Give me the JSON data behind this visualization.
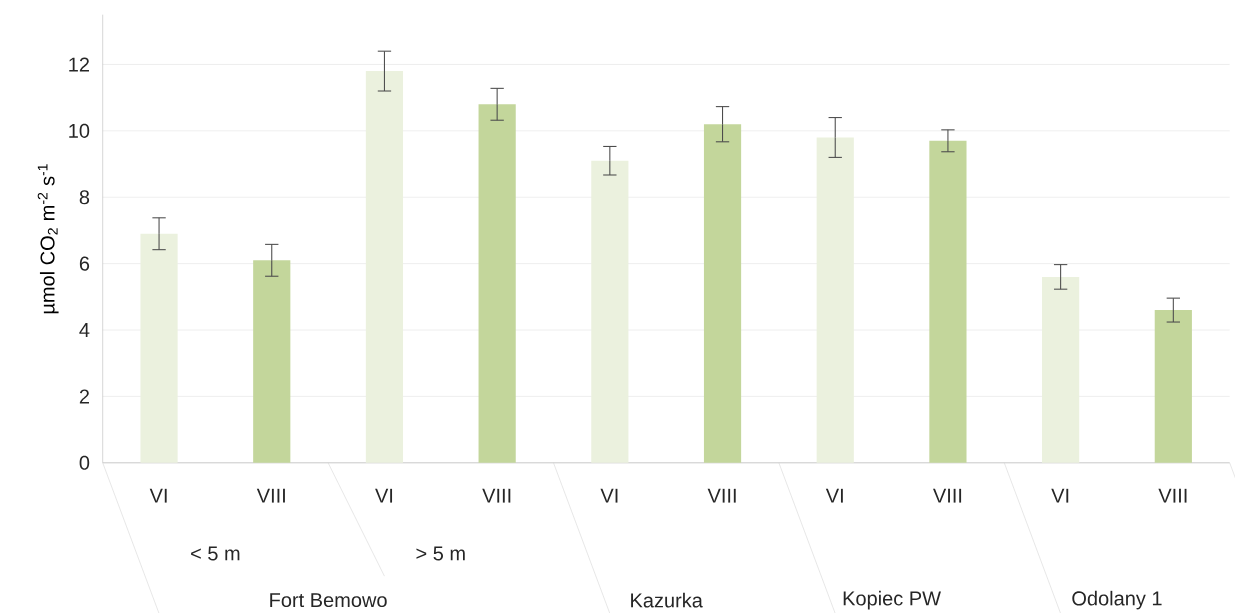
{
  "chart_data": {
    "type": "bar",
    "ylabel": "µmol CO$_{2}$ m$^{-2}$ s$^{-1}$",
    "categories": [
      "VI",
      "VIII",
      "VI",
      "VIII",
      "VI",
      "VIII",
      "VI",
      "VIII",
      "VI",
      "VIII"
    ],
    "values": [
      6.9,
      6.1,
      11.8,
      10.8,
      9.1,
      10.2,
      9.8,
      9.7,
      5.6,
      4.6
    ],
    "errors": [
      0.48,
      0.48,
      0.6,
      0.48,
      0.43,
      0.53,
      0.6,
      0.33,
      0.37,
      0.36
    ],
    "colors": [
      "#ebf1de",
      "#c3d69b",
      "#ebf1de",
      "#c3d69b",
      "#ebf1de",
      "#c3d69b",
      "#ebf1de",
      "#c3d69b",
      "#ebf1de",
      "#c3d69b"
    ],
    "annotations": [
      "< 5 m",
      "> 5 m",
      "Fort Bemowo",
      "Kazurka",
      "Kopiec PW",
      "Odolany 1"
    ],
    "ylim": [
      0,
      13.5
    ],
    "yticks": [
      0,
      2,
      4,
      6,
      8,
      10,
      12
    ],
    "grid": "y"
  }
}
